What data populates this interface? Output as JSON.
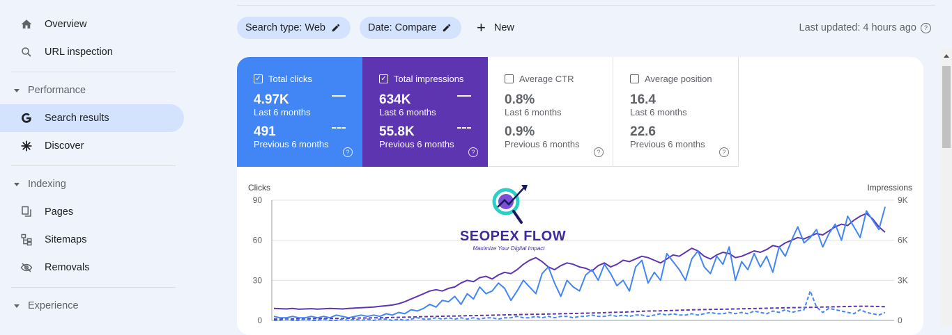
{
  "sidebar": {
    "overview": "Overview",
    "url_inspection": "URL inspection",
    "performance_section": "Performance",
    "search_results": "Search results",
    "discover": "Discover",
    "indexing_section": "Indexing",
    "pages": "Pages",
    "sitemaps": "Sitemaps",
    "removals": "Removals",
    "experience_section": "Experience"
  },
  "toolbar": {
    "chip_search_type": "Search type: Web",
    "chip_date": "Date: Compare",
    "new_label": "New",
    "last_updated": "Last updated: 4 hours ago"
  },
  "metrics": {
    "clicks": {
      "label": "Total clicks",
      "current": "4.97K",
      "current_period": "Last 6 months",
      "previous": "491",
      "previous_period": "Previous 6 months",
      "checked": true
    },
    "impressions": {
      "label": "Total impressions",
      "current": "634K",
      "current_period": "Last 6 months",
      "previous": "55.8K",
      "previous_period": "Previous 6 months",
      "checked": true
    },
    "ctr": {
      "label": "Average CTR",
      "current": "0.8%",
      "current_period": "Last 6 months",
      "previous": "0.9%",
      "previous_period": "Previous 6 months",
      "checked": false
    },
    "position": {
      "label": "Average position",
      "current": "16.4",
      "current_period": "Last 6 months",
      "previous": "22.6",
      "previous_period": "Previous 6 months",
      "checked": false
    }
  },
  "watermark": {
    "brand": "SEOPEX FLOW",
    "tagline": "Maximize Your Digital Impact"
  },
  "colors": {
    "clicks": "#4285f4",
    "impressions": "#5e35b1",
    "chip": "#d3e3fd"
  },
  "chart_data": {
    "type": "line",
    "y_left_label": "Clicks",
    "y_right_label": "Impressions",
    "y_left_ticks": [
      "0",
      "30",
      "60",
      "90"
    ],
    "y_right_ticks": [
      "0",
      "3K",
      "6K",
      "9K"
    ],
    "ylim_left": [
      0,
      90
    ],
    "ylim_right": [
      0,
      9000
    ],
    "series": [
      {
        "name": "Total clicks",
        "period": "Last 6 months",
        "axis": "left",
        "style": "solid",
        "color": "#4285f4",
        "values": [
          3,
          2,
          2,
          3,
          2,
          2,
          3,
          2,
          3,
          2,
          4,
          3,
          2,
          3,
          4,
          3,
          4,
          3,
          5,
          4,
          6,
          5,
          8,
          7,
          9,
          12,
          10,
          15,
          14,
          18,
          12,
          20,
          16,
          25,
          20,
          22,
          28,
          24,
          15,
          22,
          30,
          25,
          20,
          35,
          40,
          28,
          18,
          30,
          25,
          22,
          34,
          38,
          30,
          42,
          35,
          26,
          30,
          22,
          40,
          45,
          28,
          36,
          30,
          50,
          44,
          38,
          30,
          46,
          52,
          40,
          35,
          48,
          42,
          55,
          30,
          44,
          38,
          50,
          40,
          48,
          36,
          55,
          48,
          60,
          70,
          58,
          62,
          68,
          55,
          65,
          72,
          60,
          78,
          70,
          62,
          82,
          75,
          68,
          85
        ]
      },
      {
        "name": "Total impressions",
        "period": "Last 6 months",
        "axis": "right",
        "style": "solid",
        "color": "#5e35b1",
        "values": [
          900,
          880,
          860,
          900,
          840,
          860,
          880,
          850,
          870,
          900,
          880,
          860,
          900,
          920,
          950,
          980,
          1000,
          1050,
          1100,
          1150,
          1250,
          1400,
          1600,
          1800,
          2000,
          2200,
          2300,
          2200,
          2400,
          2500,
          2800,
          3000,
          2900,
          3200,
          3300,
          3100,
          3400,
          3600,
          3500,
          3800,
          4200,
          4500,
          4700,
          4400,
          4000,
          3800,
          4100,
          4300,
          4200,
          4000,
          3900,
          3700,
          4100,
          4300,
          4000,
          4200,
          4500,
          4400,
          4600,
          4800,
          4700,
          4500,
          4300,
          4600,
          4900,
          4800,
          5100,
          5400,
          5200,
          4800,
          4600,
          4900,
          5100,
          5000,
          4700,
          4800,
          5000,
          5200,
          5100,
          5300,
          5600,
          5500,
          5800,
          6000,
          6200,
          6100,
          6300,
          6500,
          6400,
          6700,
          7000,
          7200,
          7100,
          7500,
          7800,
          8000,
          7600,
          7000,
          6600
        ]
      },
      {
        "name": "Total clicks",
        "period": "Previous 6 months",
        "axis": "left",
        "style": "dashed",
        "color": "#4285f4",
        "values": [
          0,
          0,
          1,
          0,
          0,
          1,
          0,
          0,
          1,
          0,
          0,
          1,
          0,
          1,
          0,
          1,
          0,
          1,
          1,
          0,
          1,
          0,
          1,
          2,
          1,
          1,
          2,
          1,
          2,
          1,
          2,
          1,
          2,
          1,
          2,
          2,
          1,
          2,
          2,
          3,
          2,
          2,
          3,
          2,
          3,
          2,
          3,
          3,
          2,
          3,
          3,
          4,
          3,
          3,
          4,
          3,
          4,
          3,
          4,
          4,
          3,
          4,
          5,
          4,
          5,
          4,
          4,
          5,
          4,
          5,
          6,
          5,
          5,
          6,
          5,
          6,
          5,
          7,
          6,
          5,
          7,
          6,
          8,
          6,
          7,
          8,
          22,
          10,
          6,
          9,
          8,
          7,
          6,
          5,
          8,
          6,
          5,
          4,
          6
        ]
      },
      {
        "name": "Total impressions",
        "period": "Previous 6 months",
        "axis": "right",
        "style": "dashed",
        "color": "#5e35b1",
        "values": [
          100,
          100,
          110,
          110,
          120,
          120,
          130,
          130,
          140,
          140,
          150,
          150,
          160,
          170,
          180,
          180,
          190,
          200,
          210,
          220,
          230,
          240,
          250,
          270,
          280,
          290,
          300,
          310,
          320,
          330,
          340,
          350,
          360,
          370,
          380,
          390,
          400,
          410,
          420,
          430,
          440,
          450,
          460,
          470,
          480,
          490,
          500,
          510,
          520,
          530,
          540,
          550,
          560,
          580,
          600,
          610,
          620,
          640,
          660,
          680,
          700,
          710,
          720,
          730,
          740,
          760,
          780,
          790,
          800,
          810,
          820,
          830,
          840,
          850,
          860,
          870,
          880,
          890,
          900,
          910,
          920,
          930,
          940,
          950,
          960,
          970,
          980,
          990,
          1000,
          1010,
          1020,
          1030,
          1040,
          1050,
          1060,
          1060,
          1050,
          1040,
          1030
        ]
      }
    ]
  }
}
